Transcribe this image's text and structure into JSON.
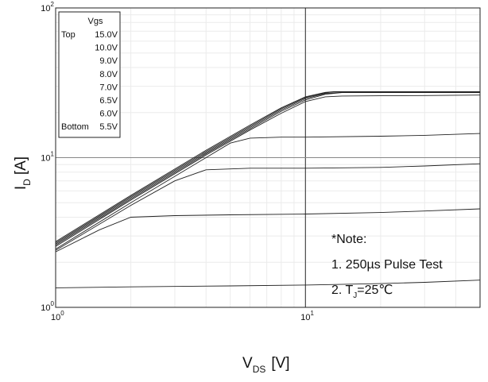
{
  "chart_data": {
    "type": "line",
    "title": "",
    "xlabel": {
      "main": "V",
      "sub": "DS",
      "unit": "[V]"
    },
    "ylabel": {
      "main": "I",
      "sub": "D",
      "unit": "[A]"
    },
    "x_scale": "log",
    "y_scale": "log",
    "xlim": [
      1,
      50
    ],
    "ylim": [
      1,
      100
    ],
    "x_ticks": [
      {
        "value": 1,
        "base": "10",
        "exp": "0"
      },
      {
        "value": 10,
        "base": "10",
        "exp": "1"
      }
    ],
    "y_ticks": [
      {
        "value": 1,
        "base": "10",
        "exp": "0"
      },
      {
        "value": 10,
        "base": "10",
        "exp": "1"
      },
      {
        "value": 100,
        "base": "10",
        "exp": "2"
      }
    ],
    "grid": true,
    "reference_lines": {
      "x": 10,
      "y": 10
    },
    "legend": {
      "position": "top-left",
      "header": "Vgs",
      "entries": [
        {
          "tag": "Top",
          "label": "15.0V"
        },
        {
          "tag": "",
          "label": "10.0V"
        },
        {
          "tag": "",
          "label": "9.0V"
        },
        {
          "tag": "",
          "label": "8.0V"
        },
        {
          "tag": "",
          "label": "7.0V"
        },
        {
          "tag": "",
          "label": "6.5V"
        },
        {
          "tag": "",
          "label": "6.0V"
        },
        {
          "tag": "Bottom",
          "label": "5.5V"
        }
      ]
    },
    "note": {
      "title": "*Note:",
      "line1": "1. 250µs Pulse Test",
      "line2_prefix": "2. T",
      "line2_sub": "J",
      "line2_suffix": "=25℃"
    },
    "series": [
      {
        "label": "15.0V",
        "x": [
          1,
          2,
          4,
          6,
          8,
          10,
          12,
          13,
          20,
          30,
          50
        ],
        "y": [
          2.75,
          5.6,
          11.2,
          16.5,
          21.5,
          25.5,
          27.3,
          27.6,
          27.6,
          27.6,
          27.6
        ]
      },
      {
        "label": "10.0V",
        "x": [
          1,
          2,
          4,
          6,
          8,
          10,
          12,
          13,
          20,
          30,
          50
        ],
        "y": [
          2.7,
          5.5,
          11.0,
          16.2,
          21.2,
          25.2,
          27.1,
          27.5,
          27.5,
          27.5,
          27.5
        ]
      },
      {
        "label": "9.0V",
        "x": [
          1,
          2,
          4,
          6,
          8,
          10,
          12,
          14,
          20,
          30,
          50
        ],
        "y": [
          2.65,
          5.4,
          10.8,
          15.9,
          20.8,
          24.8,
          26.8,
          27.3,
          27.4,
          27.4,
          27.4
        ]
      },
      {
        "label": "8.0V",
        "x": [
          1,
          2,
          4,
          6,
          8,
          10,
          12,
          14,
          20,
          30,
          50
        ],
        "y": [
          2.6,
          5.3,
          10.6,
          15.6,
          20.4,
          24.3,
          26.5,
          27.2,
          27.2,
          27.2,
          27.2
        ]
      },
      {
        "label": "7.0V",
        "x": [
          1,
          2,
          4,
          6,
          8,
          10,
          12,
          14,
          20,
          30,
          50
        ],
        "y": [
          2.55,
          5.2,
          10.4,
          15.3,
          19.8,
          23.7,
          25.5,
          25.8,
          25.9,
          26.0,
          26.2
        ]
      },
      {
        "label": "6.5V",
        "x": [
          1,
          2,
          4,
          5,
          6,
          8,
          10,
          20,
          30,
          50
        ],
        "y": [
          2.45,
          5.0,
          10.0,
          12.5,
          13.5,
          13.7,
          13.7,
          13.9,
          14.1,
          14.5
        ]
      },
      {
        "label": "6.0V",
        "x": [
          1,
          2,
          3,
          4,
          6,
          10,
          20,
          30,
          50
        ],
        "y": [
          2.4,
          4.8,
          7.0,
          8.3,
          8.5,
          8.5,
          8.6,
          8.8,
          9.1
        ]
      },
      {
        "label": "5.5V",
        "x": [
          1,
          1.5,
          2,
          3,
          5,
          10,
          20,
          30,
          50
        ],
        "y": [
          2.35,
          3.3,
          4.0,
          4.1,
          4.15,
          4.2,
          4.3,
          4.4,
          4.55
        ]
      },
      {
        "label": "",
        "x": [
          1,
          2,
          5,
          10,
          20,
          30,
          50
        ],
        "y": [
          1.35,
          1.37,
          1.39,
          1.41,
          1.44,
          1.47,
          1.52
        ]
      }
    ]
  }
}
